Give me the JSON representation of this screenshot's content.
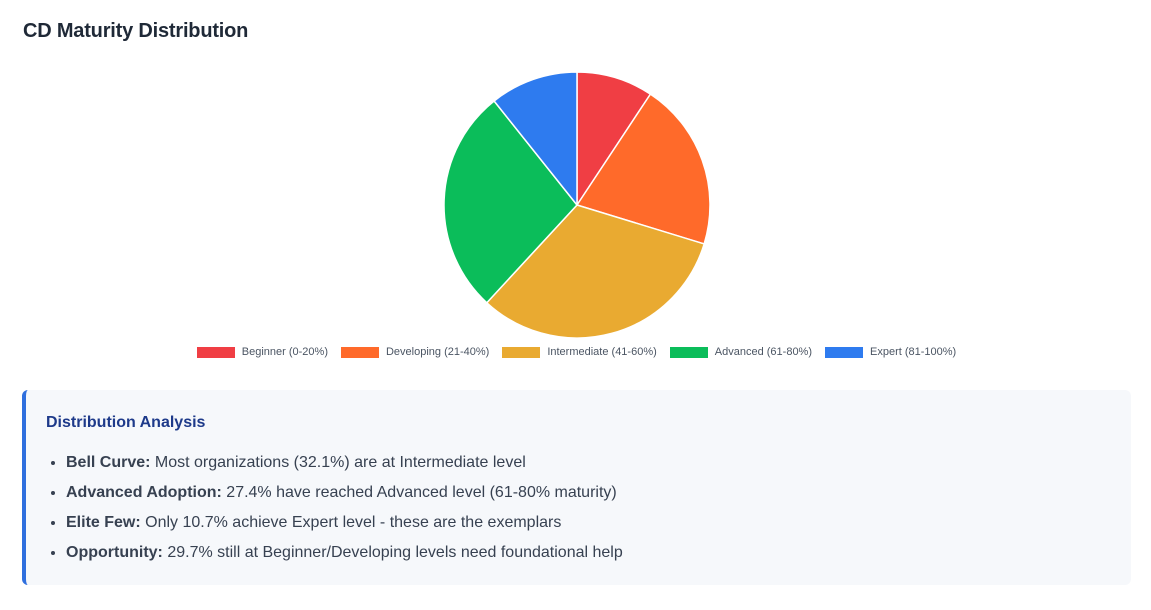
{
  "page": {
    "title": "CD Maturity Distribution"
  },
  "chart_data": {
    "type": "pie",
    "title": "",
    "categories": [
      "Beginner (0-20%)",
      "Developing (21-40%)",
      "Intermediate (41-60%)",
      "Advanced (61-80%)",
      "Expert (81-100%)"
    ],
    "values": [
      9.3,
      20.4,
      32.1,
      27.4,
      10.7
    ],
    "colors": [
      "#f03e44",
      "#ff6a2a",
      "#e9aa31",
      "#0bbd5a",
      "#2e7bef"
    ],
    "legend_position": "bottom",
    "start_angle": "top",
    "direction": "clockwise"
  },
  "analysis": {
    "title": "Distribution Analysis",
    "items": [
      {
        "label": "Bell Curve:",
        "text": " Most organizations (32.1%) are at Intermediate level"
      },
      {
        "label": "Advanced Adoption:",
        "text": " 27.4% have reached Advanced level (61-80% maturity)"
      },
      {
        "label": "Elite Few:",
        "text": " Only 10.7% achieve Expert level - these are the exemplars"
      },
      {
        "label": "Opportunity:",
        "text": " 29.7% still at Beginner/Developing levels need foundational help"
      }
    ]
  }
}
